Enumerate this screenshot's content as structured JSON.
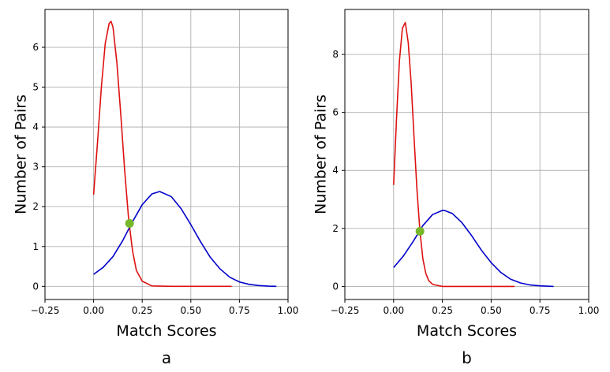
{
  "chart_data": [
    {
      "type": "line",
      "panel_label": "a",
      "xlabel": "Match Scores",
      "ylabel": "Number of Pairs",
      "xlim": [
        -0.25,
        1.0
      ],
      "ylim": [
        -0.33,
        6.95
      ],
      "xticks": [
        -0.25,
        0.0,
        0.25,
        0.5,
        0.75,
        1.0
      ],
      "xtick_labels": [
        "−0.25",
        "0.00",
        "0.25",
        "0.50",
        "0.75",
        "1.00"
      ],
      "yticks": [
        0,
        1,
        2,
        3,
        4,
        5,
        6
      ],
      "ytick_labels": [
        "0",
        "1",
        "2",
        "3",
        "4",
        "5",
        "6"
      ],
      "grid": true,
      "series": [
        {
          "color": "#dd1111",
          "x": [
            0.0,
            0.02,
            0.04,
            0.06,
            0.08,
            0.09,
            0.1,
            0.12,
            0.14,
            0.16,
            0.18,
            0.2,
            0.22,
            0.25,
            0.3,
            0.4,
            0.5,
            0.6,
            0.71
          ],
          "y": [
            2.3,
            3.6,
            5.0,
            6.1,
            6.6,
            6.65,
            6.5,
            5.6,
            4.3,
            2.9,
            1.7,
            0.9,
            0.4,
            0.13,
            0.01,
            0.0,
            0.0,
            0.0,
            0.0
          ]
        },
        {
          "color": "#0000cc",
          "x": [
            0.0,
            0.05,
            0.1,
            0.15,
            0.2,
            0.25,
            0.3,
            0.34,
            0.4,
            0.45,
            0.5,
            0.55,
            0.6,
            0.65,
            0.7,
            0.75,
            0.8,
            0.85,
            0.9,
            0.94
          ],
          "y": [
            0.3,
            0.48,
            0.75,
            1.15,
            1.62,
            2.05,
            2.32,
            2.38,
            2.25,
            1.95,
            1.55,
            1.12,
            0.73,
            0.44,
            0.23,
            0.11,
            0.05,
            0.02,
            0.005,
            0.0
          ]
        }
      ],
      "marker": {
        "x": 0.185,
        "y": 1.58,
        "color": "#76b82a"
      }
    },
    {
      "type": "line",
      "panel_label": "b",
      "xlabel": "Match Scores",
      "ylabel": "Number of Pairs",
      "xlim": [
        -0.25,
        1.0
      ],
      "ylim": [
        -0.45,
        9.55
      ],
      "xticks": [
        -0.25,
        0.0,
        0.25,
        0.5,
        0.75,
        1.0
      ],
      "xtick_labels": [
        "−0.25",
        "0.00",
        "0.25",
        "0.50",
        "0.75",
        "1.00"
      ],
      "yticks": [
        0,
        2,
        4,
        6,
        8
      ],
      "ytick_labels": [
        "0",
        "2",
        "4",
        "6",
        "8"
      ],
      "grid": true,
      "series": [
        {
          "color": "#dd1111",
          "x": [
            0.0,
            0.015,
            0.03,
            0.045,
            0.06,
            0.075,
            0.09,
            0.105,
            0.12,
            0.135,
            0.15,
            0.165,
            0.18,
            0.2,
            0.25,
            0.3,
            0.4,
            0.5,
            0.62
          ],
          "y": [
            3.5,
            5.8,
            7.8,
            8.9,
            9.1,
            8.4,
            7.0,
            5.1,
            3.3,
            1.9,
            0.95,
            0.45,
            0.2,
            0.07,
            0.0,
            0.0,
            0.0,
            0.0,
            0.0
          ]
        },
        {
          "color": "#0000cc",
          "x": [
            0.0,
            0.05,
            0.1,
            0.15,
            0.2,
            0.25,
            0.26,
            0.3,
            0.35,
            0.4,
            0.45,
            0.5,
            0.55,
            0.6,
            0.65,
            0.7,
            0.75,
            0.82
          ],
          "y": [
            0.65,
            1.05,
            1.55,
            2.1,
            2.48,
            2.62,
            2.62,
            2.52,
            2.2,
            1.75,
            1.25,
            0.82,
            0.48,
            0.25,
            0.12,
            0.05,
            0.02,
            0.0
          ]
        }
      ],
      "marker": {
        "x": 0.135,
        "y": 1.9,
        "color": "#76b82a"
      }
    }
  ]
}
